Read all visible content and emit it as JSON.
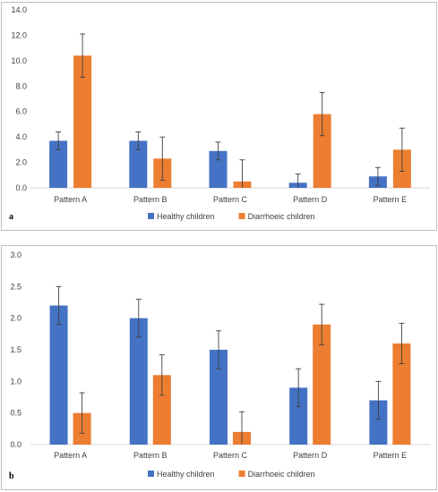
{
  "chart_data": [
    {
      "type": "bar",
      "panel_label": "a",
      "categories": [
        "Pattern A",
        "Pattern B",
        "Pattern C",
        "Pattern D",
        "Pattern E"
      ],
      "series": [
        {
          "name": "Healthy children",
          "values": [
            3.7,
            3.7,
            2.9,
            0.4,
            0.9
          ],
          "errors": [
            0.7,
            0.7,
            0.7,
            0.7,
            0.7
          ],
          "color": "#4472C4"
        },
        {
          "name": "Diarrhoeic children",
          "values": [
            10.4,
            2.3,
            0.5,
            5.8,
            3.0
          ],
          "errors": [
            1.7,
            1.7,
            1.7,
            1.7,
            1.7
          ],
          "color": "#ED7D31"
        }
      ],
      "yticks": [
        "0.0",
        "2.0",
        "4.0",
        "6.0",
        "8.0",
        "10.0",
        "12.0",
        "14.0"
      ],
      "ylim": [
        0,
        14
      ],
      "legend_position": "bottom",
      "grid": false
    },
    {
      "type": "bar",
      "panel_label": "b",
      "categories": [
        "Pattern A",
        "Pattern B",
        "Pattern C",
        "Pattern D",
        "Pattern E"
      ],
      "series": [
        {
          "name": "Healthy children",
          "values": [
            2.2,
            2.0,
            1.5,
            0.9,
            0.7
          ],
          "errors": [
            0.3,
            0.3,
            0.3,
            0.3,
            0.3
          ],
          "color": "#4472C4"
        },
        {
          "name": "Diarrhoeic children",
          "values": [
            0.5,
            1.1,
            0.2,
            1.9,
            1.6
          ],
          "errors": [
            0.32,
            0.32,
            0.32,
            0.32,
            0.32
          ],
          "color": "#ED7D31"
        }
      ],
      "yticks": [
        "0.0",
        "0.5",
        "1.0",
        "1.5",
        "2.0",
        "2.5",
        "3.0"
      ],
      "ylim": [
        0,
        3
      ],
      "legend_position": "bottom",
      "grid": false
    }
  ]
}
